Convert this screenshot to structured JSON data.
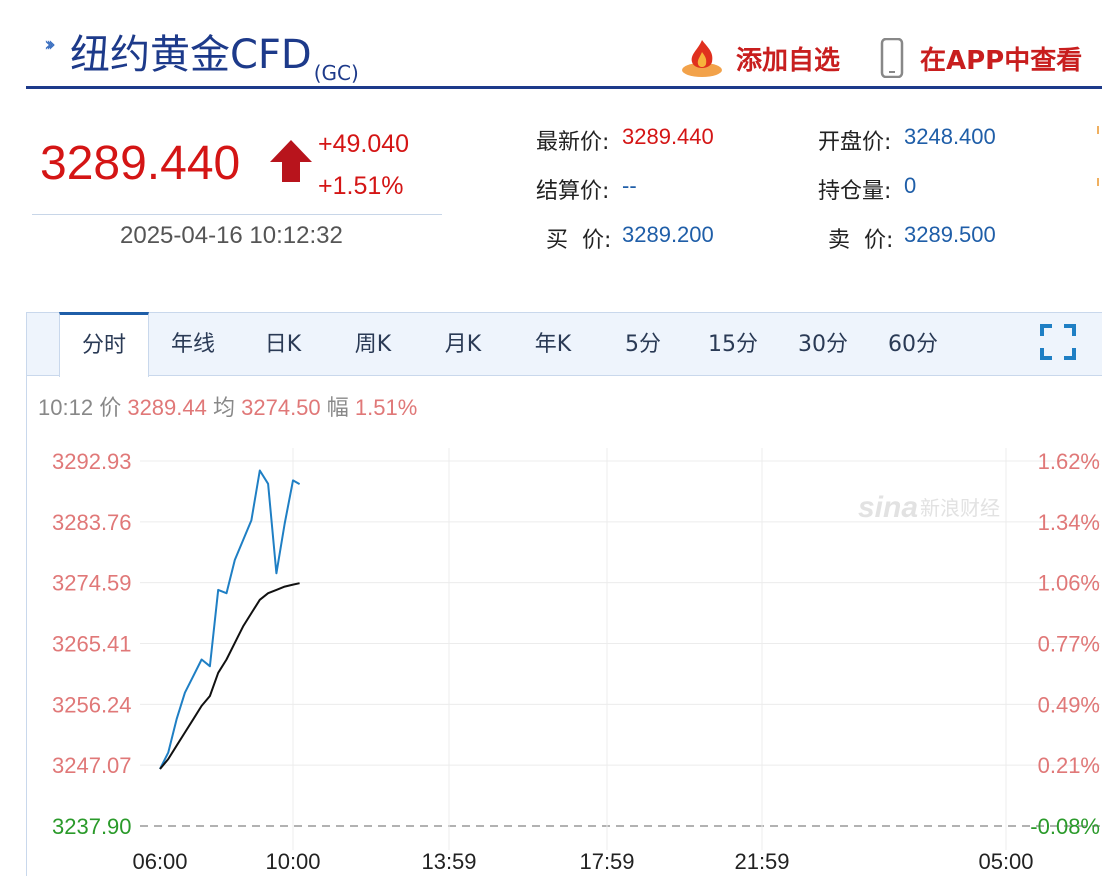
{
  "header": {
    "title": "纽约黄金CFD",
    "code": "(GC)",
    "add_watchlist": "添加自选",
    "view_in_app": "在APP中查看"
  },
  "quote": {
    "last_price": "3289.440",
    "change_abs": "+49.040",
    "change_pct": "+1.51%",
    "timestamp": "2025-04-16 10:12:32",
    "fields": [
      {
        "label": "最新价:",
        "value": "3289.440",
        "color": "red"
      },
      {
        "label": "开盘价:",
        "value": "3248.400",
        "color": "blue"
      },
      {
        "label": "结算价:",
        "value": "--",
        "color": "blue"
      },
      {
        "label": "持仓量:",
        "value": "0",
        "color": "blue"
      },
      {
        "label": "买  价:",
        "value": "3289.200",
        "color": "blue"
      },
      {
        "label": "卖  价:",
        "value": "3289.500",
        "color": "blue"
      }
    ]
  },
  "tabs": [
    {
      "label": "分时",
      "active": true
    },
    {
      "label": "年线",
      "active": false
    },
    {
      "label": "日K",
      "active": false
    },
    {
      "label": "周K",
      "active": false
    },
    {
      "label": "月K",
      "active": false
    },
    {
      "label": "年K",
      "active": false
    },
    {
      "label": "5分",
      "active": false
    },
    {
      "label": "15分",
      "active": false
    },
    {
      "label": "30分",
      "active": false
    },
    {
      "label": "60分",
      "active": false
    }
  ],
  "info_line": {
    "time": "10:12",
    "price_label": "价",
    "price": "3289.44",
    "avg_label": "均",
    "avg": "3274.50",
    "amp_label": "幅",
    "amp": "1.51%"
  },
  "watermark": "新浪财经",
  "colors": {
    "up": "#d41515",
    "value_blue": "#1f5ea8",
    "price_line": "#1f7fc4",
    "avg_line": "#111111",
    "axis_label": "#e07878",
    "base_label": "#2a9a2a"
  },
  "chart_data": {
    "type": "line",
    "x_ticks": [
      "06:00",
      "10:00",
      "13:59",
      "17:59",
      "21:59",
      "05:00"
    ],
    "y_ticks_left": [
      "3292.93",
      "3283.76",
      "3274.59",
      "3265.41",
      "3256.24",
      "3247.07",
      "3237.90"
    ],
    "y_ticks_right": [
      "1.62%",
      "1.34%",
      "1.06%",
      "0.77%",
      "0.49%",
      "0.21%",
      "-0.08%"
    ],
    "ylim": [
      3237.9,
      3292.93
    ],
    "base_value": 3237.9,
    "series": [
      {
        "role": "price",
        "x": [
          "06:00",
          "06:15",
          "06:30",
          "06:45",
          "07:00",
          "07:15",
          "07:30",
          "07:45",
          "08:00",
          "08:15",
          "08:30",
          "08:45",
          "09:00",
          "09:15",
          "09:30",
          "09:45",
          "10:00",
          "10:12"
        ],
        "values": [
          3246.5,
          3249.0,
          3254.0,
          3258.0,
          3260.5,
          3263.0,
          3262.0,
          3273.5,
          3273.0,
          3278.0,
          3281.0,
          3284.0,
          3291.5,
          3289.5,
          3276.0,
          3283.5,
          3290.0,
          3289.44
        ]
      },
      {
        "role": "average",
        "x": [
          "06:00",
          "06:15",
          "06:30",
          "06:45",
          "07:00",
          "07:15",
          "07:30",
          "07:45",
          "08:00",
          "08:15",
          "08:30",
          "08:45",
          "09:00",
          "09:15",
          "09:30",
          "09:45",
          "10:00",
          "10:12"
        ],
        "values": [
          3246.5,
          3248.0,
          3250.0,
          3252.0,
          3254.0,
          3256.0,
          3257.5,
          3261.0,
          3263.0,
          3265.5,
          3268.0,
          3270.0,
          3272.0,
          3273.0,
          3273.5,
          3274.0,
          3274.3,
          3274.5
        ]
      }
    ]
  }
}
